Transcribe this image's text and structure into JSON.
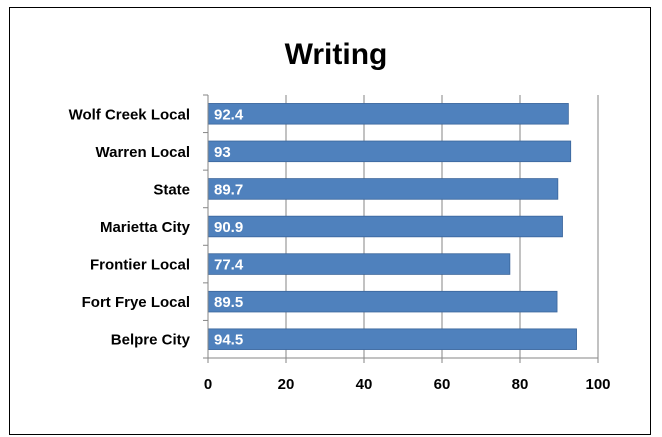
{
  "chart_data": {
    "type": "bar",
    "orientation": "horizontal",
    "title": "Writing",
    "xlabel": "",
    "ylabel": "",
    "categories": [
      "Wolf Creek Local",
      "Warren Local",
      "State",
      "Marietta City",
      "Frontier Local",
      "Fort Frye Local",
      "Belpre City"
    ],
    "values": [
      92.4,
      93,
      89.7,
      90.9,
      77.4,
      89.5,
      94.5
    ],
    "data_labels": [
      "92.4",
      "93",
      "89.7",
      "90.9",
      "77.4",
      "89.5",
      "94.5"
    ],
    "xlim": [
      0,
      100
    ],
    "xticks": [
      0,
      20,
      40,
      60,
      80,
      100
    ],
    "xtick_labels": [
      "0",
      "20",
      "40",
      "60",
      "80",
      "100"
    ],
    "grid": "vertical",
    "legend": "none",
    "colors": {
      "bar": "#4F81BD",
      "bar_edge": "#3A659B",
      "data_label": "#FFFFFF",
      "grid": "#868686",
      "axis": "#868686",
      "frame": "#000000"
    }
  }
}
